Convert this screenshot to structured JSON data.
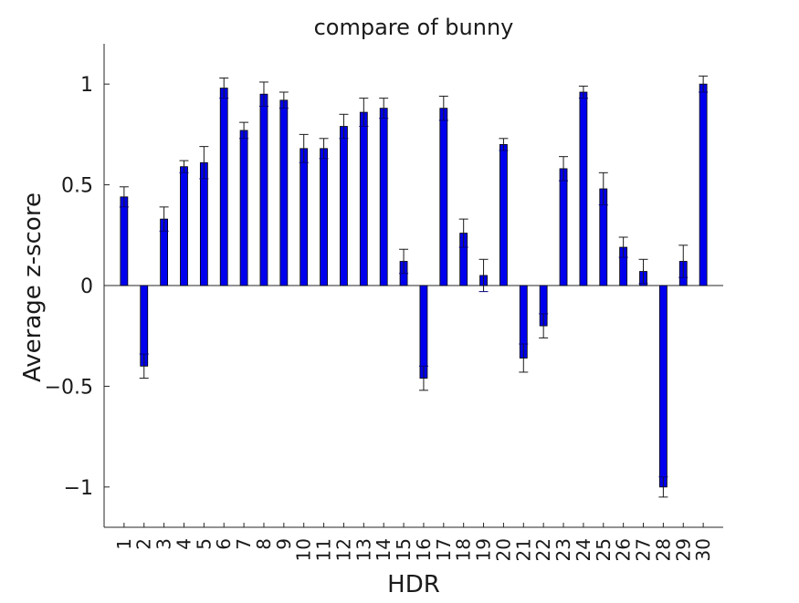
{
  "chart_data": {
    "type": "bar",
    "title": "compare of bunny",
    "xlabel": "HDR",
    "ylabel": "Average z-score",
    "ylim": [
      -1.2,
      1.2
    ],
    "yticks": [
      1,
      0.5,
      0,
      -0.5,
      -1
    ],
    "ytick_labels": [
      "1",
      "0.5",
      "0",
      "−0.5",
      "−1"
    ],
    "categories": [
      "1",
      "2",
      "3",
      "4",
      "5",
      "6",
      "7",
      "8",
      "9",
      "10",
      "11",
      "12",
      "13",
      "14",
      "15",
      "16",
      "17",
      "18",
      "19",
      "20",
      "21",
      "22",
      "23",
      "24",
      "25",
      "26",
      "27",
      "28",
      "29",
      "30"
    ],
    "values": [
      0.44,
      -0.4,
      0.33,
      0.59,
      0.61,
      0.98,
      0.77,
      0.95,
      0.92,
      0.68,
      0.68,
      0.79,
      0.86,
      0.88,
      0.12,
      -0.46,
      0.88,
      0.26,
      0.05,
      0.7,
      -0.36,
      -0.2,
      0.58,
      0.96,
      0.48,
      0.19,
      0.07,
      -1.0,
      0.12,
      1.0
    ],
    "errors": [
      0.05,
      0.06,
      0.06,
      0.03,
      0.08,
      0.05,
      0.04,
      0.06,
      0.04,
      0.07,
      0.05,
      0.06,
      0.07,
      0.05,
      0.06,
      0.06,
      0.06,
      0.07,
      0.08,
      0.03,
      0.07,
      0.06,
      0.06,
      0.03,
      0.08,
      0.05,
      0.06,
      0.05,
      0.08,
      0.04
    ],
    "bar_color": "#0000ee",
    "grid": false,
    "legend": "none"
  }
}
